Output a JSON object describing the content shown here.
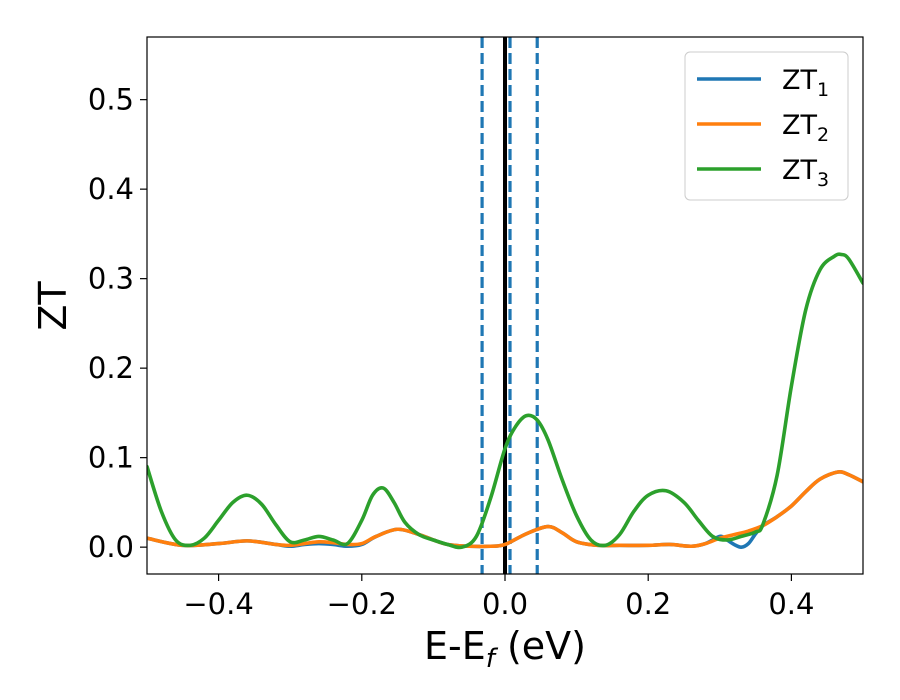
{
  "chart_data": {
    "type": "line",
    "xlabel": "E-E",
    "xlabel_sub": "f",
    "xlabel_suffix": " (eV)",
    "ylabel": "ZT",
    "xlim": [
      -0.5,
      0.5
    ],
    "ylim": [
      -0.03,
      0.57
    ],
    "xticks": [
      -0.4,
      -0.2,
      0.0,
      0.2,
      0.4
    ],
    "xtick_labels": [
      "−0.4",
      "−0.2",
      "0.0",
      "0.2",
      "0.4"
    ],
    "yticks": [
      0.0,
      0.1,
      0.2,
      0.3,
      0.4,
      0.5
    ],
    "ytick_labels": [
      "0.0",
      "0.1",
      "0.2",
      "0.3",
      "0.4",
      "0.5"
    ],
    "grid": false,
    "legend_position": "top-right",
    "reference_lines": [
      {
        "x": 0.0,
        "style": "solid",
        "color": "#000000"
      },
      {
        "x": -0.032,
        "style": "dashed",
        "color": "#1f77b4"
      },
      {
        "x": 0.007,
        "style": "dashed",
        "color": "#1f77b4"
      },
      {
        "x": 0.045,
        "style": "dashed",
        "color": "#1f77b4"
      }
    ],
    "series": [
      {
        "name": "ZT",
        "name_sub": "1",
        "color": "#1f77b4",
        "x": [
          -0.5,
          -0.45,
          -0.4,
          -0.36,
          -0.32,
          -0.3,
          -0.28,
          -0.26,
          -0.24,
          -0.22,
          -0.2,
          -0.18,
          -0.15,
          -0.12,
          -0.1,
          -0.08,
          -0.05,
          -0.02,
          0.0,
          0.03,
          0.06,
          0.08,
          0.1,
          0.13,
          0.16,
          0.2,
          0.23,
          0.26,
          0.28,
          0.3,
          0.31,
          0.32,
          0.33,
          0.34,
          0.35,
          0.36,
          0.38,
          0.4,
          0.42,
          0.44,
          0.465,
          0.48,
          0.5
        ],
        "y": [
          0.01,
          0.002,
          0.004,
          0.007,
          0.003,
          0.001,
          0.003,
          0.004,
          0.003,
          0.001,
          0.003,
          0.012,
          0.02,
          0.014,
          0.008,
          0.003,
          0.001,
          0.001,
          0.003,
          0.015,
          0.023,
          0.016,
          0.006,
          0.002,
          0.002,
          0.002,
          0.003,
          0.001,
          0.004,
          0.012,
          0.008,
          0.003,
          0.0,
          0.004,
          0.015,
          0.024,
          0.034,
          0.046,
          0.062,
          0.076,
          0.084,
          0.081,
          0.073
        ]
      },
      {
        "name": "ZT",
        "name_sub": "2",
        "color": "#ff7f0e",
        "x": [
          -0.5,
          -0.45,
          -0.4,
          -0.36,
          -0.32,
          -0.3,
          -0.28,
          -0.26,
          -0.24,
          -0.22,
          -0.2,
          -0.18,
          -0.15,
          -0.12,
          -0.1,
          -0.08,
          -0.05,
          -0.02,
          0.0,
          0.03,
          0.06,
          0.08,
          0.1,
          0.13,
          0.16,
          0.2,
          0.23,
          0.26,
          0.28,
          0.3,
          0.32,
          0.34,
          0.36,
          0.38,
          0.4,
          0.42,
          0.44,
          0.465,
          0.48,
          0.5
        ],
        "y": [
          0.01,
          0.002,
          0.004,
          0.007,
          0.003,
          0.002,
          0.004,
          0.006,
          0.005,
          0.003,
          0.004,
          0.012,
          0.02,
          0.014,
          0.008,
          0.003,
          0.001,
          0.001,
          0.003,
          0.015,
          0.023,
          0.016,
          0.006,
          0.002,
          0.002,
          0.002,
          0.003,
          0.001,
          0.004,
          0.01,
          0.014,
          0.018,
          0.024,
          0.034,
          0.046,
          0.062,
          0.076,
          0.084,
          0.081,
          0.073
        ]
      },
      {
        "name": "ZT",
        "name_sub": "3",
        "color": "#2ca02c",
        "x": [
          -0.5,
          -0.48,
          -0.46,
          -0.44,
          -0.42,
          -0.4,
          -0.38,
          -0.36,
          -0.34,
          -0.32,
          -0.3,
          -0.28,
          -0.26,
          -0.24,
          -0.22,
          -0.2,
          -0.185,
          -0.17,
          -0.155,
          -0.14,
          -0.12,
          -0.1,
          -0.08,
          -0.06,
          -0.04,
          -0.02,
          0.0,
          0.015,
          0.03,
          0.045,
          0.06,
          0.08,
          0.1,
          0.12,
          0.14,
          0.16,
          0.18,
          0.2,
          0.225,
          0.25,
          0.27,
          0.29,
          0.31,
          0.33,
          0.35,
          0.36,
          0.38,
          0.4,
          0.42,
          0.44,
          0.46,
          0.47,
          0.48,
          0.5
        ],
        "y": [
          0.09,
          0.04,
          0.008,
          0.002,
          0.01,
          0.03,
          0.05,
          0.058,
          0.048,
          0.025,
          0.006,
          0.008,
          0.012,
          0.008,
          0.004,
          0.03,
          0.058,
          0.066,
          0.05,
          0.028,
          0.014,
          0.008,
          0.003,
          0.0,
          0.012,
          0.055,
          0.11,
          0.135,
          0.147,
          0.142,
          0.12,
          0.075,
          0.035,
          0.008,
          0.002,
          0.014,
          0.04,
          0.058,
          0.063,
          0.05,
          0.03,
          0.012,
          0.008,
          0.012,
          0.017,
          0.025,
          0.08,
          0.18,
          0.265,
          0.31,
          0.325,
          0.327,
          0.322,
          0.295
        ]
      }
    ]
  }
}
